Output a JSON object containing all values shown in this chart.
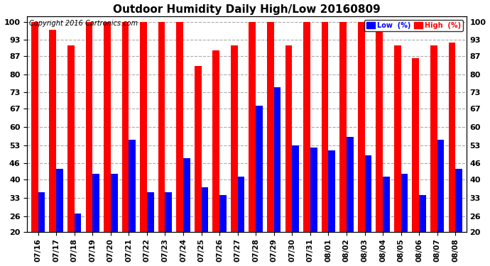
{
  "title": "Outdoor Humidity Daily High/Low 20160809",
  "copyright": "Copyright 2016 Cartronics.com",
  "dates": [
    "07/16",
    "07/17",
    "07/18",
    "07/19",
    "07/20",
    "07/21",
    "07/22",
    "07/23",
    "07/24",
    "07/25",
    "07/26",
    "07/27",
    "07/28",
    "07/29",
    "07/30",
    "07/31",
    "08/01",
    "08/02",
    "08/03",
    "08/04",
    "08/05",
    "08/06",
    "08/07",
    "08/08"
  ],
  "high": [
    100,
    97,
    91,
    100,
    100,
    100,
    100,
    100,
    100,
    83,
    89,
    91,
    100,
    100,
    91,
    100,
    100,
    100,
    100,
    96,
    91,
    86,
    91,
    92
  ],
  "low": [
    35,
    44,
    27,
    42,
    42,
    55,
    35,
    35,
    48,
    37,
    34,
    41,
    68,
    75,
    53,
    52,
    51,
    56,
    49,
    41,
    42,
    34,
    55,
    44
  ],
  "high_color": "#ff0000",
  "low_color": "#0000ff",
  "bg_color": "#ffffff",
  "grid_color": "#aaaaaa",
  "ymin": 20,
  "ymax": 102,
  "yticks": [
    20,
    26,
    33,
    40,
    46,
    53,
    60,
    67,
    73,
    80,
    87,
    93,
    100
  ],
  "legend_low_label": "Low  (%)",
  "legend_high_label": "High  (%)",
  "title_fontsize": 11,
  "copyright_fontsize": 7,
  "bar_width": 0.38
}
